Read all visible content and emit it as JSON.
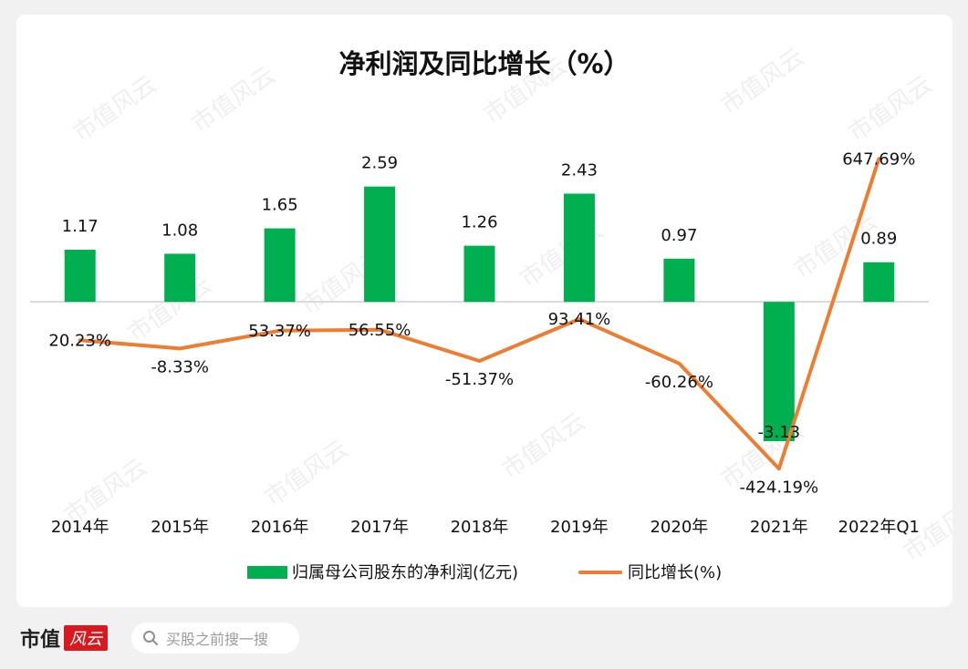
{
  "chart_data": {
    "type": "bar",
    "title": "净利润及同比增长（%）",
    "categories": [
      "2014年",
      "2015年",
      "2016年",
      "2017年",
      "2018年",
      "2019年",
      "2020年",
      "2021年",
      "2022年Q1"
    ],
    "series": [
      {
        "name": "归属母公司股东的净利润(亿元)",
        "type": "bar",
        "axis": "left",
        "color": "#00b050",
        "values": [
          1.17,
          1.08,
          1.65,
          2.59,
          1.26,
          2.43,
          0.97,
          -3.13,
          0.89
        ],
        "labels": [
          "1.17",
          "1.08",
          "1.65",
          "2.59",
          "1.26",
          "2.43",
          "0.97",
          "-3.13",
          "0.89"
        ]
      },
      {
        "name": "同比增长(%)",
        "type": "line",
        "axis": "right",
        "color": "#ed7d31",
        "values": [
          20.23,
          -8.33,
          53.37,
          56.55,
          -51.37,
          93.41,
          -60.26,
          -424.19,
          647.69
        ],
        "labels": [
          "20.23%",
          "-8.33%",
          "53.37%",
          "56.55%",
          "-51.37%",
          "93.41%",
          "-60.26%",
          "-424.19%",
          "647.69%"
        ]
      }
    ],
    "legend": "bottom",
    "grid": false,
    "ylim_left": [
      -4.5,
      4.2
    ],
    "ylim_right": [
      -540,
      800
    ],
    "background": "#ffffff"
  },
  "footer": {
    "brand": "市值",
    "brand_script": "风云",
    "search_placeholder": "买股之前搜一搜",
    "search_icon": "search-icon"
  },
  "watermark": {
    "text": "市值风云",
    "color": "#e9e9e9"
  }
}
